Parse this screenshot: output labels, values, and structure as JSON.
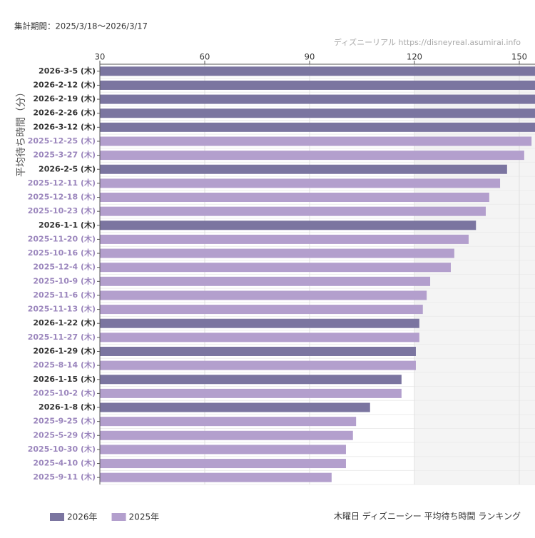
{
  "chart_data": {
    "type": "bar",
    "orientation": "horizontal",
    "title": "木曜日 ディズニーシー 平均待ち時間 ランキング",
    "subtitle": "集計期間：2025/3/18〜2026/3/17",
    "source": "ディズニーリアル https://disneyreal.asumirai.info",
    "y_label": "平均待ち時間（分）",
    "categories": [
      "2026-3-5 (木)",
      "2026-2-12 (木)",
      "2026-2-19 (木)",
      "2026-2-26 (木)",
      "2026-3-12 (木)",
      "2025-12-25 (木)",
      "2025-3-27 (木)",
      "2026-2-5 (木)",
      "2025-12-11 (木)",
      "2025-12-18 (木)",
      "2025-10-23 (木)",
      "2026-1-1 (木)",
      "2025-11-20 (木)",
      "2025-10-16 (木)",
      "2025-12-4 (木)",
      "2025-10-9 (木)",
      "2025-11-6 (木)",
      "2025-11-13 (木)",
      "2026-1-22 (木)",
      "2025-11-27 (木)",
      "2026-1-29 (木)",
      "2025-8-14 (木)",
      "2026-1-15 (木)",
      "2025-10-2 (木)",
      "2026-1-8 (木)",
      "2025-9-25 (木)",
      "2025-5-29 (木)",
      "2025-10-30 (木)",
      "2025-4-10 (木)",
      "2025-9-11 (木)"
    ],
    "series": [
      {
        "name": "2026年",
        "color": "#7b75a0",
        "label_color": "#333333",
        "values": [
          157,
          156,
          156,
          155.5,
          155.5,
          null,
          null,
          146.5,
          null,
          null,
          null,
          137.6,
          null,
          null,
          null,
          null,
          null,
          null,
          121.4,
          null,
          120.4,
          null,
          116.3,
          null,
          107.3,
          null,
          null,
          null,
          null,
          null
        ]
      },
      {
        "name": "2025年",
        "color": "#b39fcd",
        "label_color": "#9b86bd",
        "values": [
          null,
          null,
          null,
          null,
          null,
          153.5,
          151.4,
          null,
          144.5,
          141.4,
          140.4,
          null,
          135.5,
          131.4,
          130.4,
          124.5,
          123.5,
          122.4,
          null,
          121.4,
          null,
          120.4,
          null,
          116.3,
          null,
          103.3,
          102.4,
          100.4,
          100.4,
          96.3
        ]
      }
    ],
    "xlim": [
      30,
      155
    ],
    "xticks": [
      30,
      60,
      90,
      120,
      150
    ],
    "highlight_range": [
      120,
      155
    ],
    "grid": true,
    "legend": "bottom-left"
  }
}
